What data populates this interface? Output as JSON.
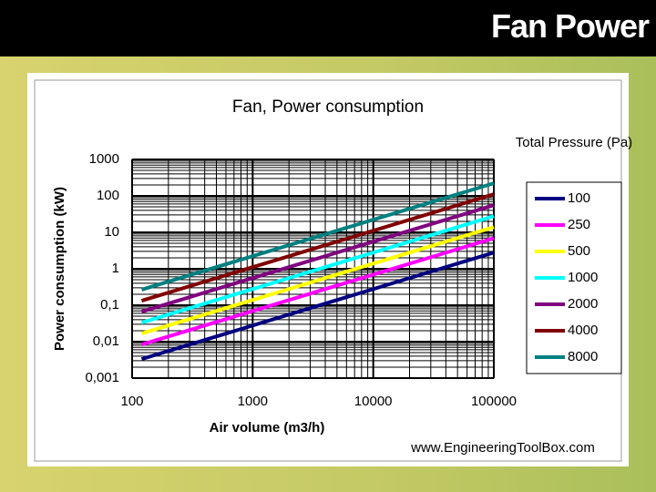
{
  "header": {
    "title": "Fan Power"
  },
  "chart_data": {
    "type": "line",
    "title": "Fan, Power consumption",
    "x_label": "Air volume (m3/h)",
    "y_label": "Power consumption (kW)",
    "legend_title": "Total Pressure (Pa)",
    "source": "www.EngineeringToolBox.com",
    "x": [
      120,
      100000
    ],
    "series": [
      {
        "name": "100",
        "color": "#000080",
        "values": [
          0.00333,
          2.78
        ]
      },
      {
        "name": "250",
        "color": "#ff00ff",
        "values": [
          0.00833,
          6.9
        ]
      },
      {
        "name": "500",
        "color": "#ffff00",
        "values": [
          0.0167,
          13.9
        ]
      },
      {
        "name": "1000",
        "color": "#00ffff",
        "values": [
          0.0333,
          27.8
        ]
      },
      {
        "name": "2000",
        "color": "#800080",
        "values": [
          0.0667,
          55.6
        ]
      },
      {
        "name": "4000",
        "color": "#800000",
        "values": [
          0.133,
          111
        ]
      },
      {
        "name": "8000",
        "color": "#008080",
        "values": [
          0.267,
          222
        ]
      }
    ],
    "xlim": [
      100,
      100000
    ],
    "xticks": [
      100,
      1000,
      10000,
      100000
    ],
    "ylim": [
      0.001,
      1000
    ],
    "yticks": [
      {
        "value": 0.001,
        "label": "0,001"
      },
      {
        "value": 0.01,
        "label": "0,01"
      },
      {
        "value": 0.1,
        "label": "0,1"
      },
      1,
      10,
      100,
      1000
    ],
    "xscale": "log",
    "yscale": "log",
    "grid": true,
    "legend": "right"
  }
}
